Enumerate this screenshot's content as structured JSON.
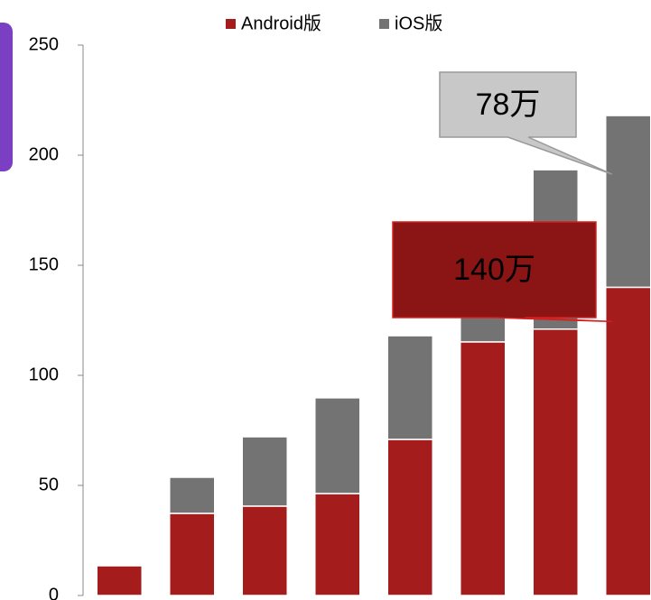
{
  "chart_data": {
    "type": "bar",
    "stacked": true,
    "categories": [
      null,
      null,
      null,
      null,
      null,
      null,
      null,
      null
    ],
    "series": [
      {
        "name": "Android版",
        "color": "#a51c1c",
        "values": [
          13.5,
          37.3,
          40.6,
          46.3,
          70.9,
          115.2,
          121,
          140
        ],
        "value_labels": [
          null,
          null,
          null,
          null,
          null,
          null,
          null,
          "140万"
        ]
      },
      {
        "name": "iOS版",
        "color": "#737373",
        "values": [
          0,
          16.4,
          31.5,
          43.5,
          47.1,
          40,
          72.4,
          78
        ],
        "value_labels": [
          null,
          null,
          null,
          null,
          null,
          null,
          null,
          "78万"
        ]
      }
    ],
    "ylim": [
      0,
      250
    ],
    "yticks": [
      0,
      50,
      100,
      150,
      200,
      250
    ],
    "grid": false,
    "legend": "top"
  }
}
